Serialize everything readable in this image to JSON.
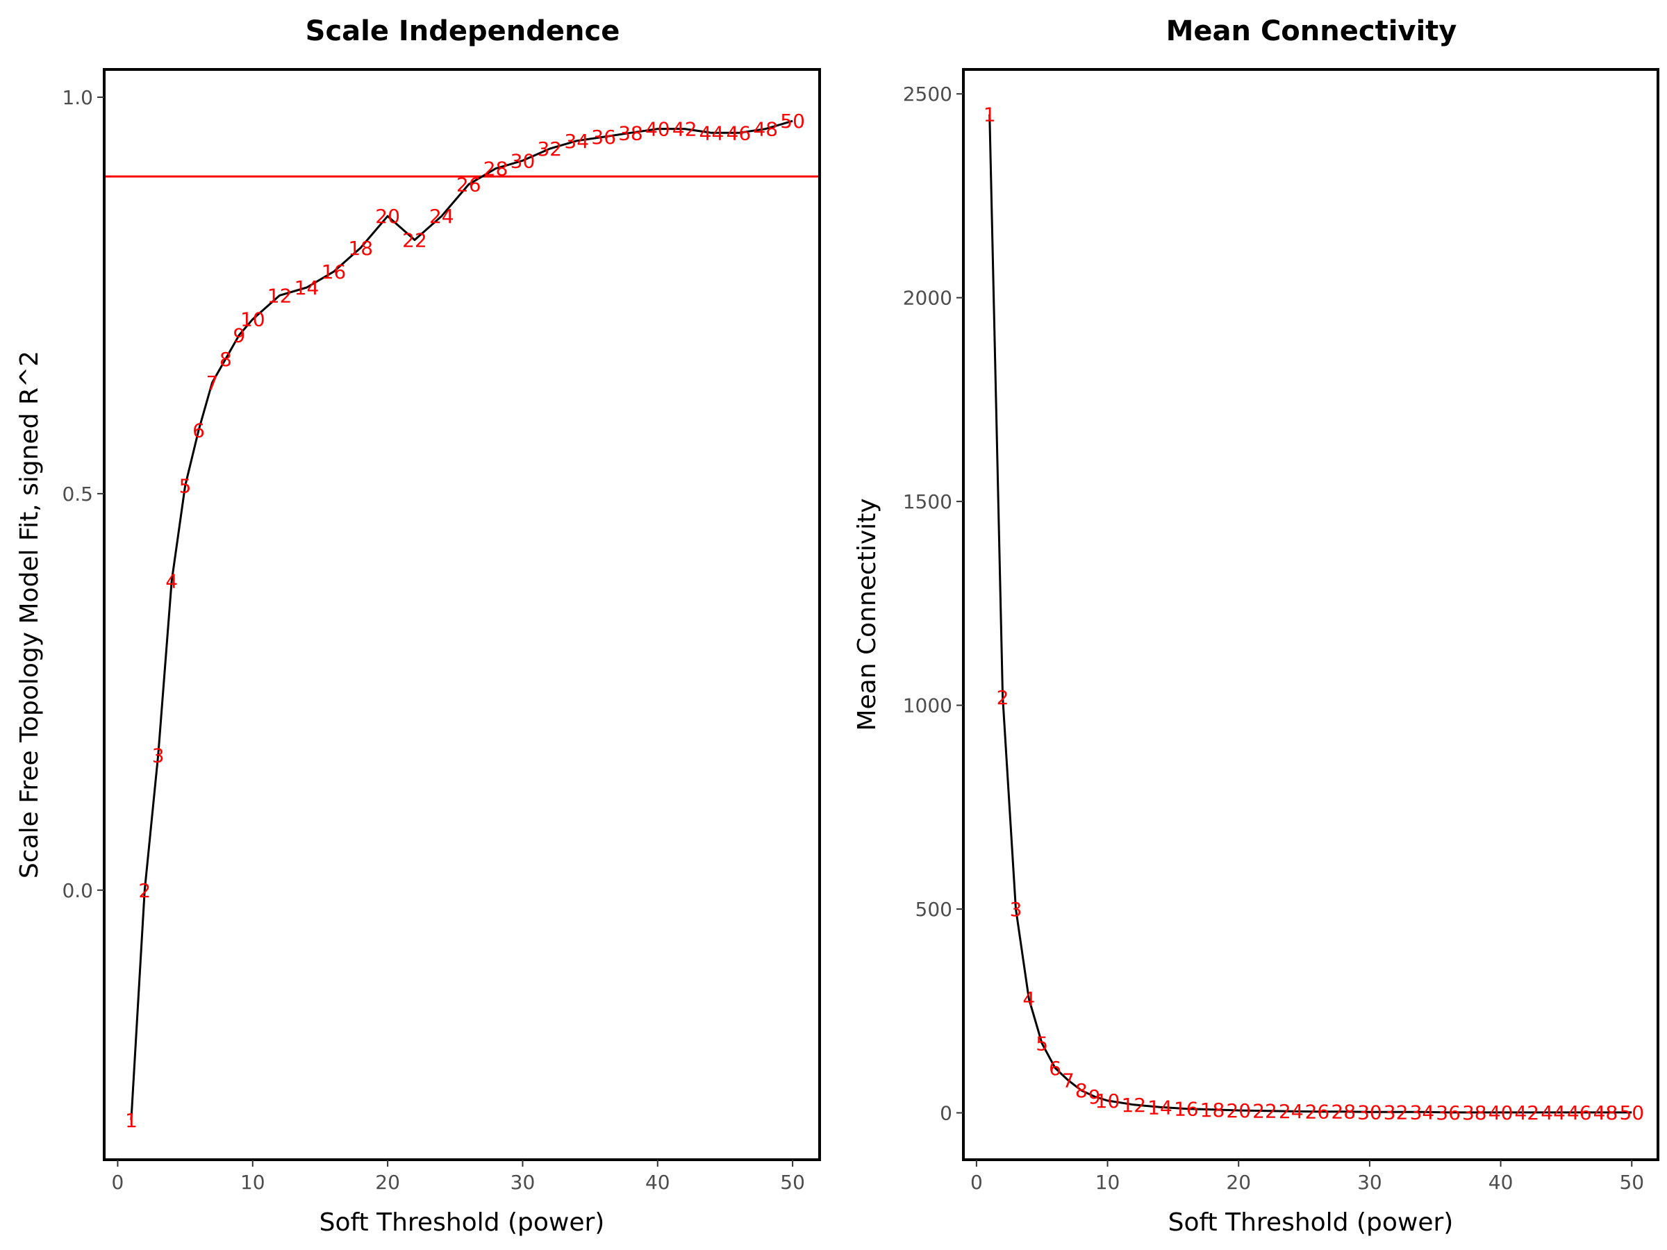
{
  "chart_data": [
    {
      "type": "line",
      "title": "Scale Independence",
      "xlabel": "Soft Threshold (power)",
      "ylabel": "Scale Free Topology Model Fit, signed R^2",
      "xlim": [
        -1,
        52
      ],
      "ylim": [
        -0.34,
        1.035
      ],
      "xticks": [
        0,
        10,
        20,
        30,
        40,
        50
      ],
      "yticks": [
        0.0,
        0.5,
        1.0
      ],
      "ytick_labels": [
        "0.0",
        "0.5",
        "1.0"
      ],
      "reference_line": {
        "y": 0.9,
        "color": "#ff0000"
      },
      "line_color": "#000000",
      "label_color": "#ff0000",
      "x": [
        1,
        2,
        3,
        4,
        5,
        6,
        7,
        8,
        9,
        10,
        12,
        14,
        16,
        18,
        20,
        22,
        24,
        26,
        28,
        30,
        32,
        34,
        36,
        38,
        40,
        42,
        44,
        46,
        48,
        50
      ],
      "y": [
        -0.29,
        0.0,
        0.17,
        0.39,
        0.51,
        0.58,
        0.64,
        0.67,
        0.7,
        0.72,
        0.75,
        0.76,
        0.78,
        0.81,
        0.85,
        0.82,
        0.85,
        0.89,
        0.91,
        0.92,
        0.935,
        0.945,
        0.95,
        0.955,
        0.96,
        0.96,
        0.955,
        0.955,
        0.96,
        0.97
      ],
      "point_labels": [
        "1",
        "2",
        "3",
        "4",
        "5",
        "6",
        "7",
        "8",
        "9",
        "10",
        "12",
        "14",
        "16",
        "18",
        "20",
        "22",
        "24",
        "26",
        "28",
        "30",
        "32",
        "34",
        "36",
        "38",
        "40",
        "42",
        "44",
        "46",
        "48",
        "50"
      ]
    },
    {
      "type": "line",
      "title": "Mean Connectivity",
      "xlabel": "Soft Threshold (power)",
      "ylabel": "Mean Connectivity",
      "xlim": [
        -1,
        52
      ],
      "ylim": [
        -115,
        2560
      ],
      "xticks": [
        0,
        10,
        20,
        30,
        40,
        50
      ],
      "yticks": [
        0,
        500,
        1000,
        1500,
        2000,
        2500
      ],
      "ytick_labels": [
        "0",
        "500",
        "1000",
        "1500",
        "2000",
        "2500"
      ],
      "line_color": "#000000",
      "label_color": "#ff0000",
      "x": [
        1,
        2,
        3,
        4,
        5,
        6,
        7,
        8,
        9,
        10,
        12,
        14,
        16,
        18,
        20,
        22,
        24,
        26,
        28,
        30,
        32,
        34,
        36,
        38,
        40,
        42,
        44,
        46,
        48,
        50
      ],
      "y": [
        2450,
        1020,
        500,
        280,
        170,
        110,
        80,
        55,
        40,
        30,
        20,
        14,
        10,
        8,
        6,
        5,
        4,
        3,
        3,
        2,
        2,
        2,
        1,
        1,
        1,
        1,
        1,
        1,
        1,
        1
      ],
      "point_labels": [
        "1",
        "2",
        "3",
        "4",
        "5",
        "6",
        "7",
        "8",
        "9",
        "10",
        "12",
        "14",
        "16",
        "18",
        "20",
        "22",
        "24",
        "26",
        "28",
        "30",
        "32",
        "34",
        "36",
        "38",
        "40",
        "42",
        "44",
        "46",
        "48",
        "50"
      ]
    }
  ]
}
